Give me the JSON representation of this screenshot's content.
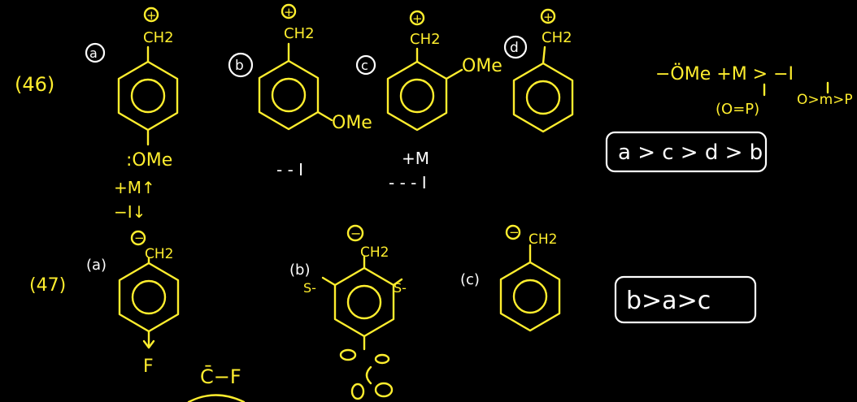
{
  "q46": {
    "number": "(46)",
    "a": {
      "tag": "a",
      "charge": "+",
      "ch2": "CH2",
      "substituent": ":OMe",
      "note1": "+M↑",
      "note2": "−I↓"
    },
    "b": {
      "tag": "b",
      "charge": "+",
      "ch2": "CH2",
      "substituent": "OMe",
      "note": "- - I"
    },
    "c": {
      "tag": "c",
      "charge": "+",
      "ch2": "CH2",
      "substituent": "OMe",
      "note1": "+M",
      "note2": "- - - I"
    },
    "d": {
      "tag": "d",
      "charge": "+",
      "ch2": "CH2"
    },
    "rule_line1": "−ÖMe  +M > −I",
    "rule_op": "(O=P)",
    "rule_im": "O>m>P",
    "answer": "a > c > d > b"
  },
  "q47": {
    "number": "(47)",
    "a": {
      "tag": "(a)",
      "charge": "−",
      "ch2": "CH2",
      "substituent": "F"
    },
    "b": {
      "tag": "(b)",
      "charge": "−",
      "ch2": "CH2",
      "left": "S-",
      "right": "S-"
    },
    "c": {
      "tag": "(c)",
      "charge": "−",
      "ch2": "CH2"
    },
    "carbanion_note": "C̄−F",
    "answer": "b>a>c"
  }
}
